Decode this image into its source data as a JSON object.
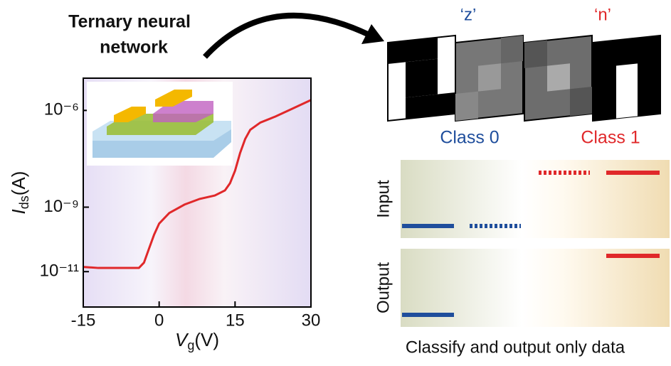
{
  "chart_data": {
    "type": "line",
    "yscale": "log",
    "x": [
      -15,
      -12,
      -9,
      -6,
      -4,
      -3,
      -2,
      -1,
      0,
      2,
      5,
      8,
      11,
      13,
      14,
      15,
      16,
      17,
      18,
      20,
      23,
      26,
      30
    ],
    "series": [
      {
        "color": "#e0282a",
        "values": [
          1.4e-11,
          1.3e-11,
          1.3e-11,
          1.3e-11,
          1.3e-11,
          1.9e-11,
          5.2e-11,
          1.4e-10,
          3.1e-10,
          6.6e-10,
          1.2e-09,
          1.8e-09,
          2.3e-09,
          3.3e-09,
          5.5e-09,
          1.35e-08,
          4.8e-08,
          1.3e-07,
          2.5e-07,
          4.2e-07,
          6.5e-07,
          1.07e-06,
          2.1e-06
        ]
      }
    ],
    "xlim": [
      -15,
      30
    ],
    "xticks": [
      -15,
      0,
      15,
      30
    ],
    "ylim": [
      8e-13,
      1e-05
    ],
    "yticks": [
      {
        "value": 1e-06,
        "label": "10⁻⁶"
      },
      {
        "value": 1e-09,
        "label": "10⁻⁹"
      },
      {
        "value": 1e-11,
        "label": "10⁻¹¹"
      }
    ],
    "ylabel": {
      "symbol": "I",
      "subscript": "ds",
      "unit": "(A)"
    },
    "xlabel": {
      "symbol": "V",
      "subscript": "g",
      "unit": "(V)"
    }
  },
  "header": {
    "title_lines": [
      "Ternary neural",
      "network"
    ]
  },
  "panel": {
    "letters": [
      "‘z’",
      "‘n’"
    ],
    "classes": [
      "Class 0",
      "Class 1"
    ],
    "rows": [
      "Input",
      "Output"
    ],
    "caption": "Classify and output only data"
  }
}
